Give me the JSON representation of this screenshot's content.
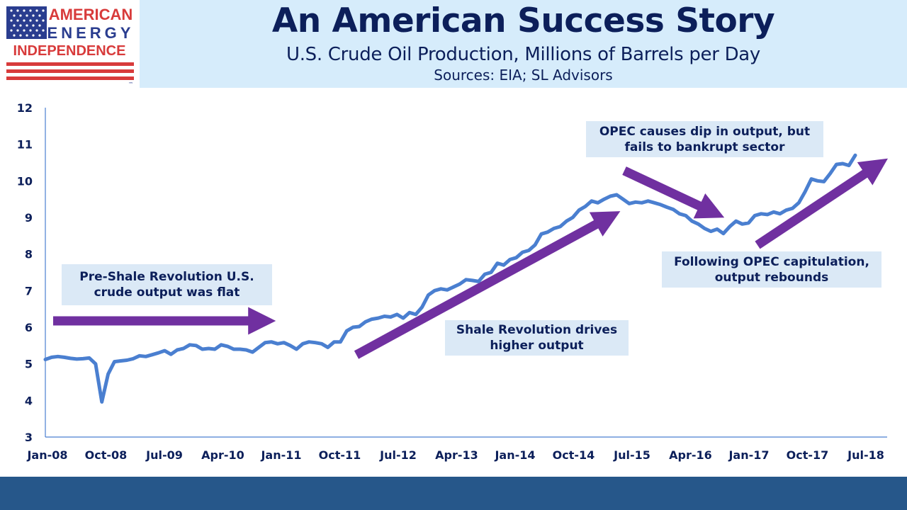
{
  "logo": {
    "line1": "AMERICAN",
    "line2": "ENERGY",
    "line3": "INDEPENDENCE",
    "trademark": "™"
  },
  "header": {
    "title": "An American Success Story",
    "subtitle": "U.S. Crude Oil Production, Millions of Barrels per Day",
    "sources": "Sources: EIA; SL Advisors"
  },
  "annotations": {
    "pre_shale": "Pre-Shale Revolution U.S. crude output was flat",
    "shale": "Shale Revolution drives higher output",
    "opec_dip": "OPEC causes dip in output, but fails to bankrupt sector",
    "rebound": "Following OPEC capitulation, output rebounds"
  },
  "colors": {
    "line": "#4a7fd0",
    "arrow": "#7030a0",
    "title": "#0c1f5a",
    "header_bg": "#d6ecfb",
    "footer_bg": "#26578a",
    "flag_blue": "#2a3d8f",
    "flag_red": "#d83b3b"
  },
  "chart_data": {
    "type": "line",
    "title": "U.S. Crude Oil Production, Millions of Barrels per Day",
    "xlabel": "",
    "ylabel": "",
    "ylim": [
      3,
      12
    ],
    "yticks": [
      "3",
      "4",
      "5",
      "6",
      "7",
      "8",
      "9",
      "10",
      "11",
      "12"
    ],
    "xticks": [
      "Jan-08",
      "Oct-08",
      "Jul-09",
      "Apr-10",
      "Jan-11",
      "Oct-11",
      "Jul-12",
      "Apr-13",
      "Jan-14",
      "Oct-14",
      "Jul-15",
      "Apr-16",
      "Jan-17",
      "Oct-17",
      "Jul-18"
    ],
    "x_start": "Jan-08",
    "x_end": "Jul-18",
    "grid": false,
    "series": [
      {
        "values": [
          5.12,
          5.18,
          5.2,
          5.18,
          5.15,
          5.13,
          5.14,
          5.16,
          5.0,
          3.96,
          4.72,
          5.06,
          5.08,
          5.1,
          5.14,
          5.22,
          5.2,
          5.25,
          5.3,
          5.36,
          5.26,
          5.38,
          5.42,
          5.52,
          5.5,
          5.4,
          5.42,
          5.4,
          5.52,
          5.48,
          5.4,
          5.4,
          5.38,
          5.32,
          5.45,
          5.58,
          5.6,
          5.55,
          5.58,
          5.5,
          5.4,
          5.55,
          5.6,
          5.58,
          5.55,
          5.45,
          5.6,
          5.6,
          5.9,
          6.0,
          6.02,
          6.15,
          6.22,
          6.25,
          6.3,
          6.28,
          6.35,
          6.25,
          6.4,
          6.35,
          6.55,
          6.88,
          7.0,
          7.05,
          7.02,
          7.1,
          7.18,
          7.3,
          7.28,
          7.25,
          7.45,
          7.5,
          7.75,
          7.7,
          7.85,
          7.9,
          8.05,
          8.1,
          8.25,
          8.55,
          8.6,
          8.7,
          8.75,
          8.9,
          9.0,
          9.2,
          9.3,
          9.45,
          9.4,
          9.5,
          9.58,
          9.62,
          9.5,
          9.38,
          9.42,
          9.4,
          9.45,
          9.4,
          9.35,
          9.28,
          9.22,
          9.1,
          9.05,
          8.9,
          8.82,
          8.7,
          8.62,
          8.68,
          8.56,
          8.75,
          8.9,
          8.82,
          8.85,
          9.05,
          9.1,
          9.08,
          9.15,
          9.1,
          9.2,
          9.25,
          9.4,
          9.7,
          10.05,
          10.0,
          9.98,
          10.2,
          10.45,
          10.47,
          10.42,
          10.7
        ]
      }
    ]
  }
}
